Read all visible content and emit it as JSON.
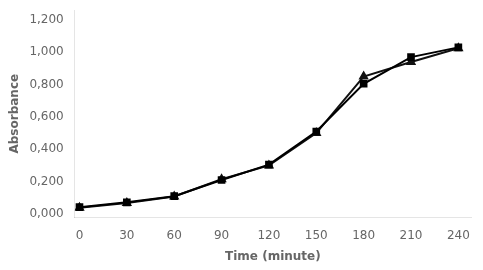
{
  "chart_data": {
    "type": "line",
    "x_label": "Time (minute)",
    "y_label": "Absorbance",
    "x": [
      0,
      30,
      60,
      90,
      120,
      150,
      180,
      210,
      240
    ],
    "series": [
      {
        "color": "#000000",
        "marker": "square",
        "values": [
          0.042,
          0.072,
          0.11,
          0.21,
          0.305,
          0.51,
          0.805,
          0.97,
          1.03
        ]
      },
      {
        "color": "#111111",
        "marker": "triangle",
        "values": [
          0.038,
          0.068,
          0.108,
          0.215,
          0.3,
          0.5,
          0.85,
          0.94,
          1.025
        ]
      }
    ],
    "xlim": [
      -3,
      248
    ],
    "ylim": [
      -0.02,
      1.26
    ],
    "xticks": [
      0,
      30,
      60,
      90,
      120,
      150,
      180,
      210,
      240
    ],
    "yticks": [
      {
        "value": 0.0,
        "label": "0,000"
      },
      {
        "value": 0.2,
        "label": "0,200"
      },
      {
        "value": 0.4,
        "label": "0,400"
      },
      {
        "value": 0.6,
        "label": "0,600"
      },
      {
        "value": 0.8,
        "label": "0,800"
      },
      {
        "value": 1.0,
        "label": "1,000"
      },
      {
        "value": 1.2,
        "label": "1,200"
      }
    ],
    "grid": false
  }
}
